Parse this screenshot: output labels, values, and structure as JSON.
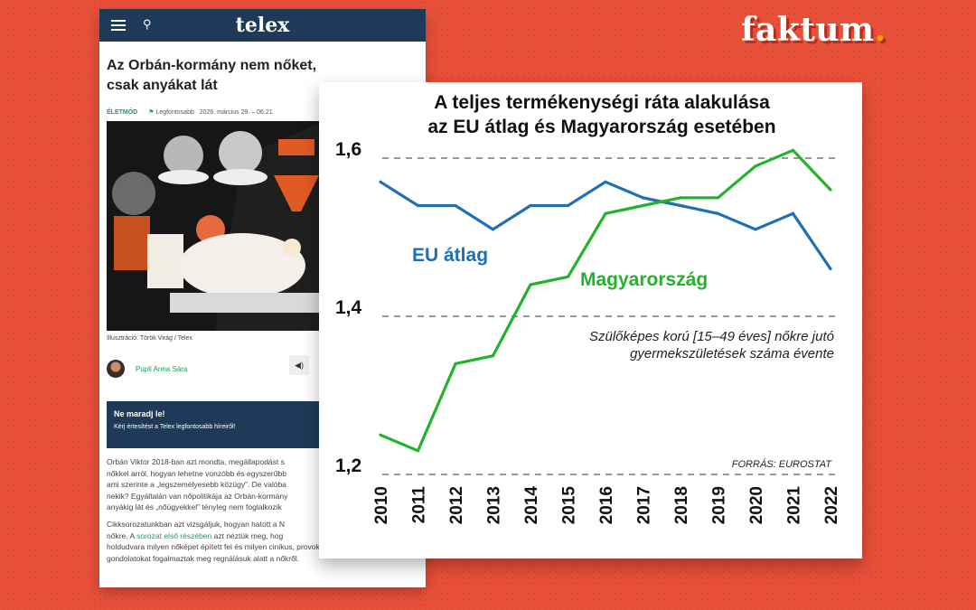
{
  "brand": {
    "name": "faktum",
    "dot": "."
  },
  "article": {
    "logo": "telex",
    "title": "Az Orbán-kormány nem nőket, csak anyákat lát",
    "category": "ÉLETMÓD",
    "flag": "Legfontosabb",
    "date": "2026. március 29. – 06:21",
    "caption": "Illusztráció: Török Virág / Telex",
    "author": "Pupli Anna Sára",
    "box_title": "Ne maradj le!",
    "box_text": "Kérj értesítést a Telex legfontosabb híreiről!",
    "body": [
      "Orbán Viktor 2018-ban azt mondta, megállapodást s",
      "nőkkel arról, hogyan lehetne vonzóbb és egyszerűbb",
      "ami szerinte a „legszemélyesebb közügy”. De valóba",
      "nekik? Egyáltalán van nőpolitikája az Orbán-kormány",
      "anyákig lát és „nőügyekkel” tényleg nem foglalkozik"
    ],
    "body2_pre": "Cikksorozatunkban azt vizsgáljuk, hogyan hatott a N",
    "body2_line2_pre": "nőkre. A ",
    "body2_link": "sorozat első részében",
    "body2_line2_post": " azt néztük meg, hog",
    "body2_rest": [
      "holdudvara milyen nőképet épített fel és milyen cinikus, provokatív",
      "gondolatokat fogalmaztak meg regnálásuk alatt a nőkről."
    ]
  },
  "chart_data": {
    "type": "line",
    "title": "A teljes termékenységi ráta alakulása",
    "subtitle": "az EU átlag és Magyarország esetében",
    "x": [
      2010,
      2011,
      2012,
      2013,
      2014,
      2015,
      2016,
      2017,
      2018,
      2019,
      2020,
      2021,
      2022
    ],
    "ylim": [
      1.2,
      1.6
    ],
    "yticks": [
      "1,2",
      "1,4",
      "1,6"
    ],
    "ytick_values": [
      1.2,
      1.4,
      1.6
    ],
    "grid": "dashed horizontal at ticks",
    "series": [
      {
        "name": "EU átlag",
        "color": "#1f6fb2",
        "values": [
          1.57,
          1.54,
          1.54,
          1.51,
          1.54,
          1.54,
          1.57,
          1.55,
          1.54,
          1.53,
          1.51,
          1.53,
          1.46
        ]
      },
      {
        "name": "Magyarország",
        "color": "#22b32a",
        "values": [
          1.25,
          1.23,
          1.34,
          1.35,
          1.44,
          1.45,
          1.53,
          1.54,
          1.55,
          1.55,
          1.59,
          1.61,
          1.56
        ]
      }
    ],
    "annotation": [
      "Szülőképes korú [15–49 éves] nőkre jutó",
      "gyermekszületések száma évente"
    ],
    "source": "FORRÁS: EUROSTAT"
  }
}
